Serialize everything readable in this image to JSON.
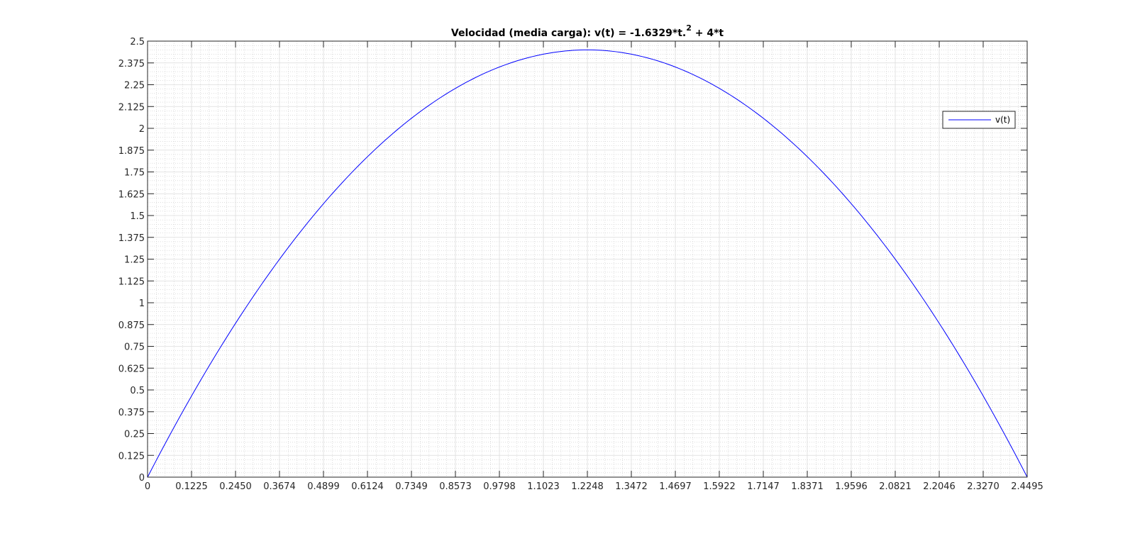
{
  "chart_data": {
    "type": "line",
    "title": {
      "main": "Velocidad (media carga): v(t) = -1.6329*t.",
      "superscript": "2",
      "suffix": " + 4*t"
    },
    "xlabel": "",
    "ylabel": "",
    "xlim": [
      0,
      2.4495
    ],
    "ylim": [
      0,
      2.5
    ],
    "x_ticks": [
      0,
      0.1225,
      0.245,
      0.3674,
      0.4899,
      0.6124,
      0.7349,
      0.8573,
      0.9798,
      1.1023,
      1.2248,
      1.3472,
      1.4697,
      1.5922,
      1.7147,
      1.8371,
      1.9596,
      2.0821,
      2.2046,
      2.327,
      2.4495
    ],
    "x_tick_labels": [
      "0",
      "0.1225",
      "0.2450",
      "0.3674",
      "0.4899",
      "0.6124",
      "0.7349",
      "0.8573",
      "0.9798",
      "1.1023",
      "1.2248",
      "1.3472",
      "1.4697",
      "1.5922",
      "1.7147",
      "1.8371",
      "1.9596",
      "2.0821",
      "2.2046",
      "2.3270",
      "2.4495"
    ],
    "y_ticks": [
      0,
      0.125,
      0.25,
      0.375,
      0.5,
      0.625,
      0.75,
      0.875,
      1,
      1.125,
      1.25,
      1.375,
      1.5,
      1.625,
      1.75,
      1.875,
      2,
      2.125,
      2.25,
      2.375,
      2.5
    ],
    "y_tick_labels": [
      "0",
      "0.125",
      "0.25",
      "0.375",
      "0.5",
      "0.625",
      "0.75",
      "0.875",
      "1",
      "1.125",
      "1.25",
      "1.375",
      "1.5",
      "1.625",
      "1.75",
      "1.875",
      "2",
      "2.125",
      "2.25",
      "2.375",
      "2.5"
    ],
    "grid": true,
    "minor_grid": true,
    "legend_position": "top-right",
    "series": [
      {
        "name": "v(t)",
        "color": "#0000ff",
        "x": [
          0,
          0.1225,
          0.245,
          0.3674,
          0.4899,
          0.6124,
          0.7349,
          0.8573,
          0.9798,
          1.1023,
          1.2248,
          1.3472,
          1.4697,
          1.5922,
          1.7147,
          1.8371,
          1.9596,
          2.0821,
          2.2046,
          2.327,
          2.4495
        ],
        "y": [
          0,
          0.465,
          0.882,
          1.249,
          1.568,
          1.837,
          2.058,
          2.229,
          2.352,
          2.425,
          2.449,
          2.425,
          2.352,
          2.229,
          2.058,
          1.837,
          1.568,
          1.249,
          0.882,
          0.465,
          0
        ]
      }
    ]
  }
}
